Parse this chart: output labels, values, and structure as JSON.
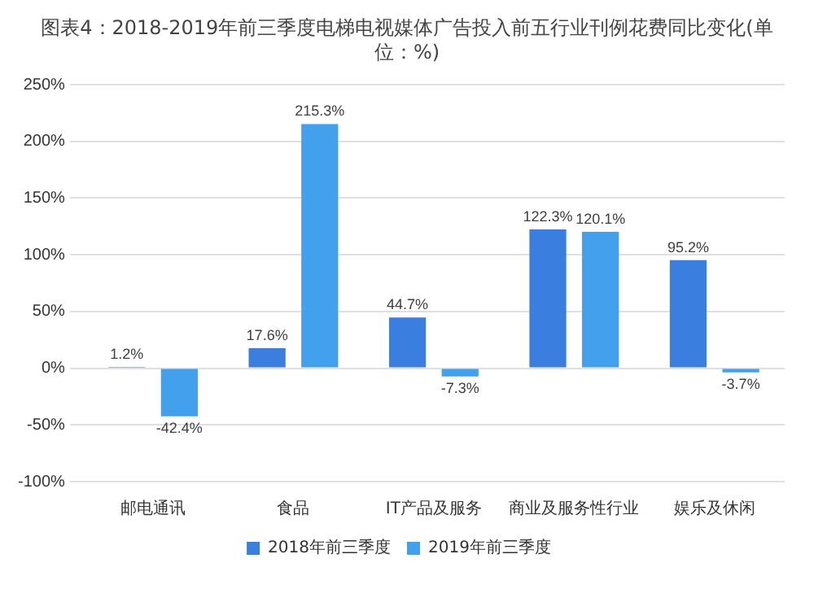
{
  "chart_data": {
    "type": "bar",
    "title": "图表4：2018-2019年前三季度电梯电视媒体广告投入前五行业刊例花费同比变化(单位：%)",
    "categories": [
      "邮电通讯",
      "食品",
      "IT产品及服务",
      "商业及服务性行业",
      "娱乐及休闲"
    ],
    "series": [
      {
        "name": "2018年前三季度",
        "color": "#3a7ee0",
        "values": [
          1.2,
          17.6,
          44.7,
          122.3,
          95.2
        ],
        "value_labels": [
          "1.2%",
          "17.6%",
          "44.7%",
          "122.3%",
          "95.2%"
        ]
      },
      {
        "name": "2019年前三季度",
        "color": "#43a0ec",
        "values": [
          -42.4,
          215.3,
          -7.3,
          120.1,
          -3.7
        ],
        "value_labels": [
          "-42.4%",
          "215.3%",
          "-7.3%",
          "120.1%",
          "-3.7%"
        ]
      }
    ],
    "ylim": [
      -100,
      250
    ],
    "yticks": [
      {
        "value": -100,
        "label": "-100%"
      },
      {
        "value": -50,
        "label": "-50%"
      },
      {
        "value": 0,
        "label": "0%"
      },
      {
        "value": 50,
        "label": "50%"
      },
      {
        "value": 100,
        "label": "100%"
      },
      {
        "value": 150,
        "label": "150%"
      },
      {
        "value": 200,
        "label": "200%"
      },
      {
        "value": 250,
        "label": "250%"
      }
    ],
    "grid": "y",
    "legend": "bottom"
  }
}
